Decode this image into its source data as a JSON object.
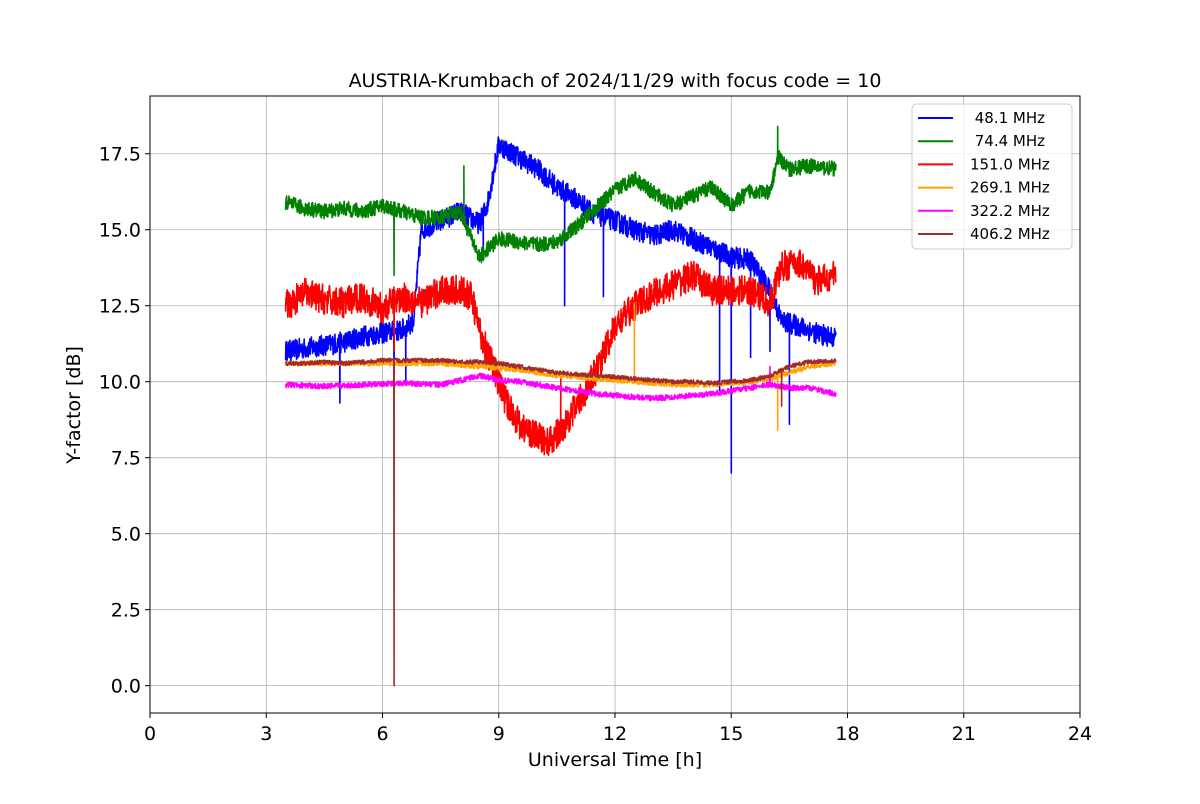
{
  "chart_data": {
    "type": "line",
    "title": "AUSTRIA-Krumbach of 2024/11/29 with focus code = 10",
    "xlabel": "Universal Time [h]",
    "ylabel": "Y-factor [dB]",
    "xlim": [
      0,
      24
    ],
    "ylim": [
      -0.9,
      19.4
    ],
    "x_ticks": [
      0,
      3,
      6,
      9,
      12,
      15,
      18,
      21,
      24
    ],
    "x_tick_labels": [
      "0",
      "3",
      "6",
      "9",
      "12",
      "15",
      "18",
      "21",
      "24"
    ],
    "y_ticks": [
      0.0,
      2.5,
      5.0,
      7.5,
      10.0,
      12.5,
      15.0,
      17.5
    ],
    "y_tick_labels": [
      "0.0",
      "2.5",
      "5.0",
      "7.5",
      "10.0",
      "12.5",
      "15.0",
      "17.5"
    ],
    "grid": true,
    "legend_position": "top-right",
    "series": [
      {
        "name": " 48.1 MHz",
        "color": "#0000ff",
        "noise": 0.35,
        "points": [
          [
            3.5,
            11.0
          ],
          [
            4.0,
            11.1
          ],
          [
            4.5,
            11.2
          ],
          [
            5.0,
            11.3
          ],
          [
            5.5,
            11.5
          ],
          [
            6.0,
            11.6
          ],
          [
            6.5,
            11.7
          ],
          [
            6.8,
            12.0
          ],
          [
            7.0,
            15.0
          ],
          [
            7.5,
            15.3
          ],
          [
            8.0,
            15.6
          ],
          [
            8.5,
            15.2
          ],
          [
            8.7,
            15.8
          ],
          [
            9.0,
            17.8
          ],
          [
            9.5,
            17.4
          ],
          [
            10.0,
            17.0
          ],
          [
            10.5,
            16.4
          ],
          [
            11.0,
            16.0
          ],
          [
            11.5,
            15.5
          ],
          [
            12.0,
            15.3
          ],
          [
            12.5,
            15.0
          ],
          [
            13.0,
            14.8
          ],
          [
            13.5,
            15.0
          ],
          [
            14.0,
            14.7
          ],
          [
            14.5,
            14.4
          ],
          [
            15.0,
            14.1
          ],
          [
            15.5,
            14.0
          ],
          [
            16.0,
            13.0
          ],
          [
            16.3,
            12.0
          ],
          [
            16.8,
            11.8
          ],
          [
            17.2,
            11.6
          ],
          [
            17.7,
            11.4
          ]
        ],
        "spikes": [
          [
            4.9,
            9.3
          ],
          [
            6.3,
            10.3
          ],
          [
            6.6,
            10.0
          ],
          [
            8.6,
            14.0
          ],
          [
            10.7,
            12.5
          ],
          [
            11.7,
            12.8
          ],
          [
            14.7,
            9.7
          ],
          [
            15.0,
            7.0
          ],
          [
            15.5,
            10.8
          ],
          [
            16.0,
            11.0
          ],
          [
            16.5,
            8.6
          ]
        ]
      },
      {
        "name": " 74.4 MHz",
        "color": "#008000",
        "noise": 0.25,
        "points": [
          [
            3.5,
            15.9
          ],
          [
            4.0,
            15.7
          ],
          [
            4.5,
            15.6
          ],
          [
            5.0,
            15.7
          ],
          [
            5.5,
            15.6
          ],
          [
            6.0,
            15.8
          ],
          [
            6.5,
            15.6
          ],
          [
            7.0,
            15.4
          ],
          [
            7.5,
            15.4
          ],
          [
            8.0,
            15.6
          ],
          [
            8.5,
            14.1
          ],
          [
            9.0,
            14.7
          ],
          [
            9.5,
            14.6
          ],
          [
            10.0,
            14.5
          ],
          [
            10.5,
            14.6
          ],
          [
            11.0,
            15.1
          ],
          [
            11.5,
            15.7
          ],
          [
            12.0,
            16.3
          ],
          [
            12.5,
            16.7
          ],
          [
            13.0,
            16.2
          ],
          [
            13.5,
            15.8
          ],
          [
            14.0,
            16.1
          ],
          [
            14.5,
            16.4
          ],
          [
            15.0,
            15.8
          ],
          [
            15.5,
            16.3
          ],
          [
            16.0,
            16.2
          ],
          [
            16.2,
            17.4
          ],
          [
            16.5,
            17.0
          ],
          [
            17.0,
            17.1
          ],
          [
            17.7,
            17.0
          ]
        ],
        "spikes": [
          [
            6.3,
            13.5
          ],
          [
            7.0,
            15.2
          ],
          [
            8.1,
            17.1
          ],
          [
            16.2,
            18.4
          ]
        ]
      },
      {
        "name": "151.0 MHz",
        "color": "#ff0000",
        "noise": 0.5,
        "points": [
          [
            3.5,
            12.5
          ],
          [
            4.0,
            12.9
          ],
          [
            4.5,
            12.7
          ],
          [
            5.0,
            12.6
          ],
          [
            5.5,
            12.8
          ],
          [
            6.0,
            12.4
          ],
          [
            6.5,
            12.8
          ],
          [
            7.0,
            12.6
          ],
          [
            7.5,
            13.0
          ],
          [
            8.0,
            13.0
          ],
          [
            8.3,
            12.8
          ],
          [
            8.5,
            11.7
          ],
          [
            8.8,
            10.7
          ],
          [
            9.2,
            9.3
          ],
          [
            9.6,
            8.5
          ],
          [
            10.0,
            8.2
          ],
          [
            10.3,
            8.0
          ],
          [
            10.6,
            8.4
          ],
          [
            11.0,
            9.2
          ],
          [
            11.5,
            10.3
          ],
          [
            12.0,
            11.8
          ],
          [
            12.5,
            12.5
          ],
          [
            13.0,
            12.9
          ],
          [
            13.5,
            13.2
          ],
          [
            14.0,
            13.5
          ],
          [
            14.5,
            13.0
          ],
          [
            15.0,
            13.0
          ],
          [
            15.5,
            13.0
          ],
          [
            16.0,
            12.6
          ],
          [
            16.3,
            13.8
          ],
          [
            16.8,
            13.9
          ],
          [
            17.2,
            13.3
          ],
          [
            17.7,
            13.5
          ]
        ],
        "spikes": [
          [
            6.3,
            11.0
          ],
          [
            10.6,
            10.2
          ]
        ]
      },
      {
        "name": "269.1 MHz",
        "color": "#ffa500",
        "noise": 0.08,
        "points": [
          [
            3.5,
            10.6
          ],
          [
            4.5,
            10.6
          ],
          [
            5.5,
            10.6
          ],
          [
            6.5,
            10.6
          ],
          [
            7.5,
            10.6
          ],
          [
            8.5,
            10.5
          ],
          [
            9.5,
            10.4
          ],
          [
            10.5,
            10.2
          ],
          [
            11.5,
            10.1
          ],
          [
            12.5,
            10.0
          ],
          [
            13.5,
            9.9
          ],
          [
            14.5,
            9.9
          ],
          [
            15.5,
            10.0
          ],
          [
            16.0,
            10.1
          ],
          [
            16.5,
            10.3
          ],
          [
            17.0,
            10.5
          ],
          [
            17.7,
            10.6
          ]
        ],
        "spikes": [
          [
            12.5,
            12.6
          ],
          [
            16.2,
            8.4
          ]
        ]
      },
      {
        "name": "322.2 MHz",
        "color": "#ff00ff",
        "noise": 0.09,
        "points": [
          [
            3.5,
            9.9
          ],
          [
            4.5,
            9.85
          ],
          [
            5.5,
            9.9
          ],
          [
            6.5,
            9.95
          ],
          [
            7.5,
            9.9
          ],
          [
            8.2,
            10.1
          ],
          [
            8.5,
            10.2
          ],
          [
            9.0,
            10.05
          ],
          [
            9.5,
            10.0
          ],
          [
            10.0,
            9.9
          ],
          [
            10.5,
            9.8
          ],
          [
            11.0,
            9.7
          ],
          [
            11.5,
            9.6
          ],
          [
            12.0,
            9.55
          ],
          [
            12.5,
            9.5
          ],
          [
            13.0,
            9.45
          ],
          [
            13.5,
            9.5
          ],
          [
            14.0,
            9.55
          ],
          [
            14.5,
            9.6
          ],
          [
            15.0,
            9.7
          ],
          [
            15.5,
            9.8
          ],
          [
            16.0,
            9.9
          ],
          [
            16.5,
            9.8
          ],
          [
            17.0,
            9.8
          ],
          [
            17.7,
            9.6
          ]
        ],
        "spikes": [
          [
            16.0,
            10.5
          ]
        ]
      },
      {
        "name": "406.2 MHz",
        "color": "#a52a2a",
        "noise": 0.07,
        "points": [
          [
            3.5,
            10.6
          ],
          [
            4.0,
            10.6
          ],
          [
            4.5,
            10.65
          ],
          [
            5.0,
            10.6
          ],
          [
            5.5,
            10.65
          ],
          [
            6.0,
            10.7
          ],
          [
            6.5,
            10.7
          ],
          [
            7.0,
            10.7
          ],
          [
            7.5,
            10.7
          ],
          [
            8.0,
            10.65
          ],
          [
            8.5,
            10.65
          ],
          [
            9.0,
            10.6
          ],
          [
            9.5,
            10.5
          ],
          [
            10.0,
            10.4
          ],
          [
            10.5,
            10.3
          ],
          [
            11.0,
            10.25
          ],
          [
            11.5,
            10.2
          ],
          [
            12.0,
            10.15
          ],
          [
            12.5,
            10.1
          ],
          [
            13.0,
            10.05
          ],
          [
            13.5,
            10.0
          ],
          [
            14.0,
            10.0
          ],
          [
            14.5,
            9.95
          ],
          [
            15.0,
            10.0
          ],
          [
            15.5,
            10.05
          ],
          [
            16.0,
            10.2
          ],
          [
            16.5,
            10.5
          ],
          [
            17.0,
            10.65
          ],
          [
            17.7,
            10.7
          ]
        ],
        "spikes": [
          [
            6.3,
            0.0
          ],
          [
            16.3,
            9.2
          ]
        ]
      }
    ]
  }
}
